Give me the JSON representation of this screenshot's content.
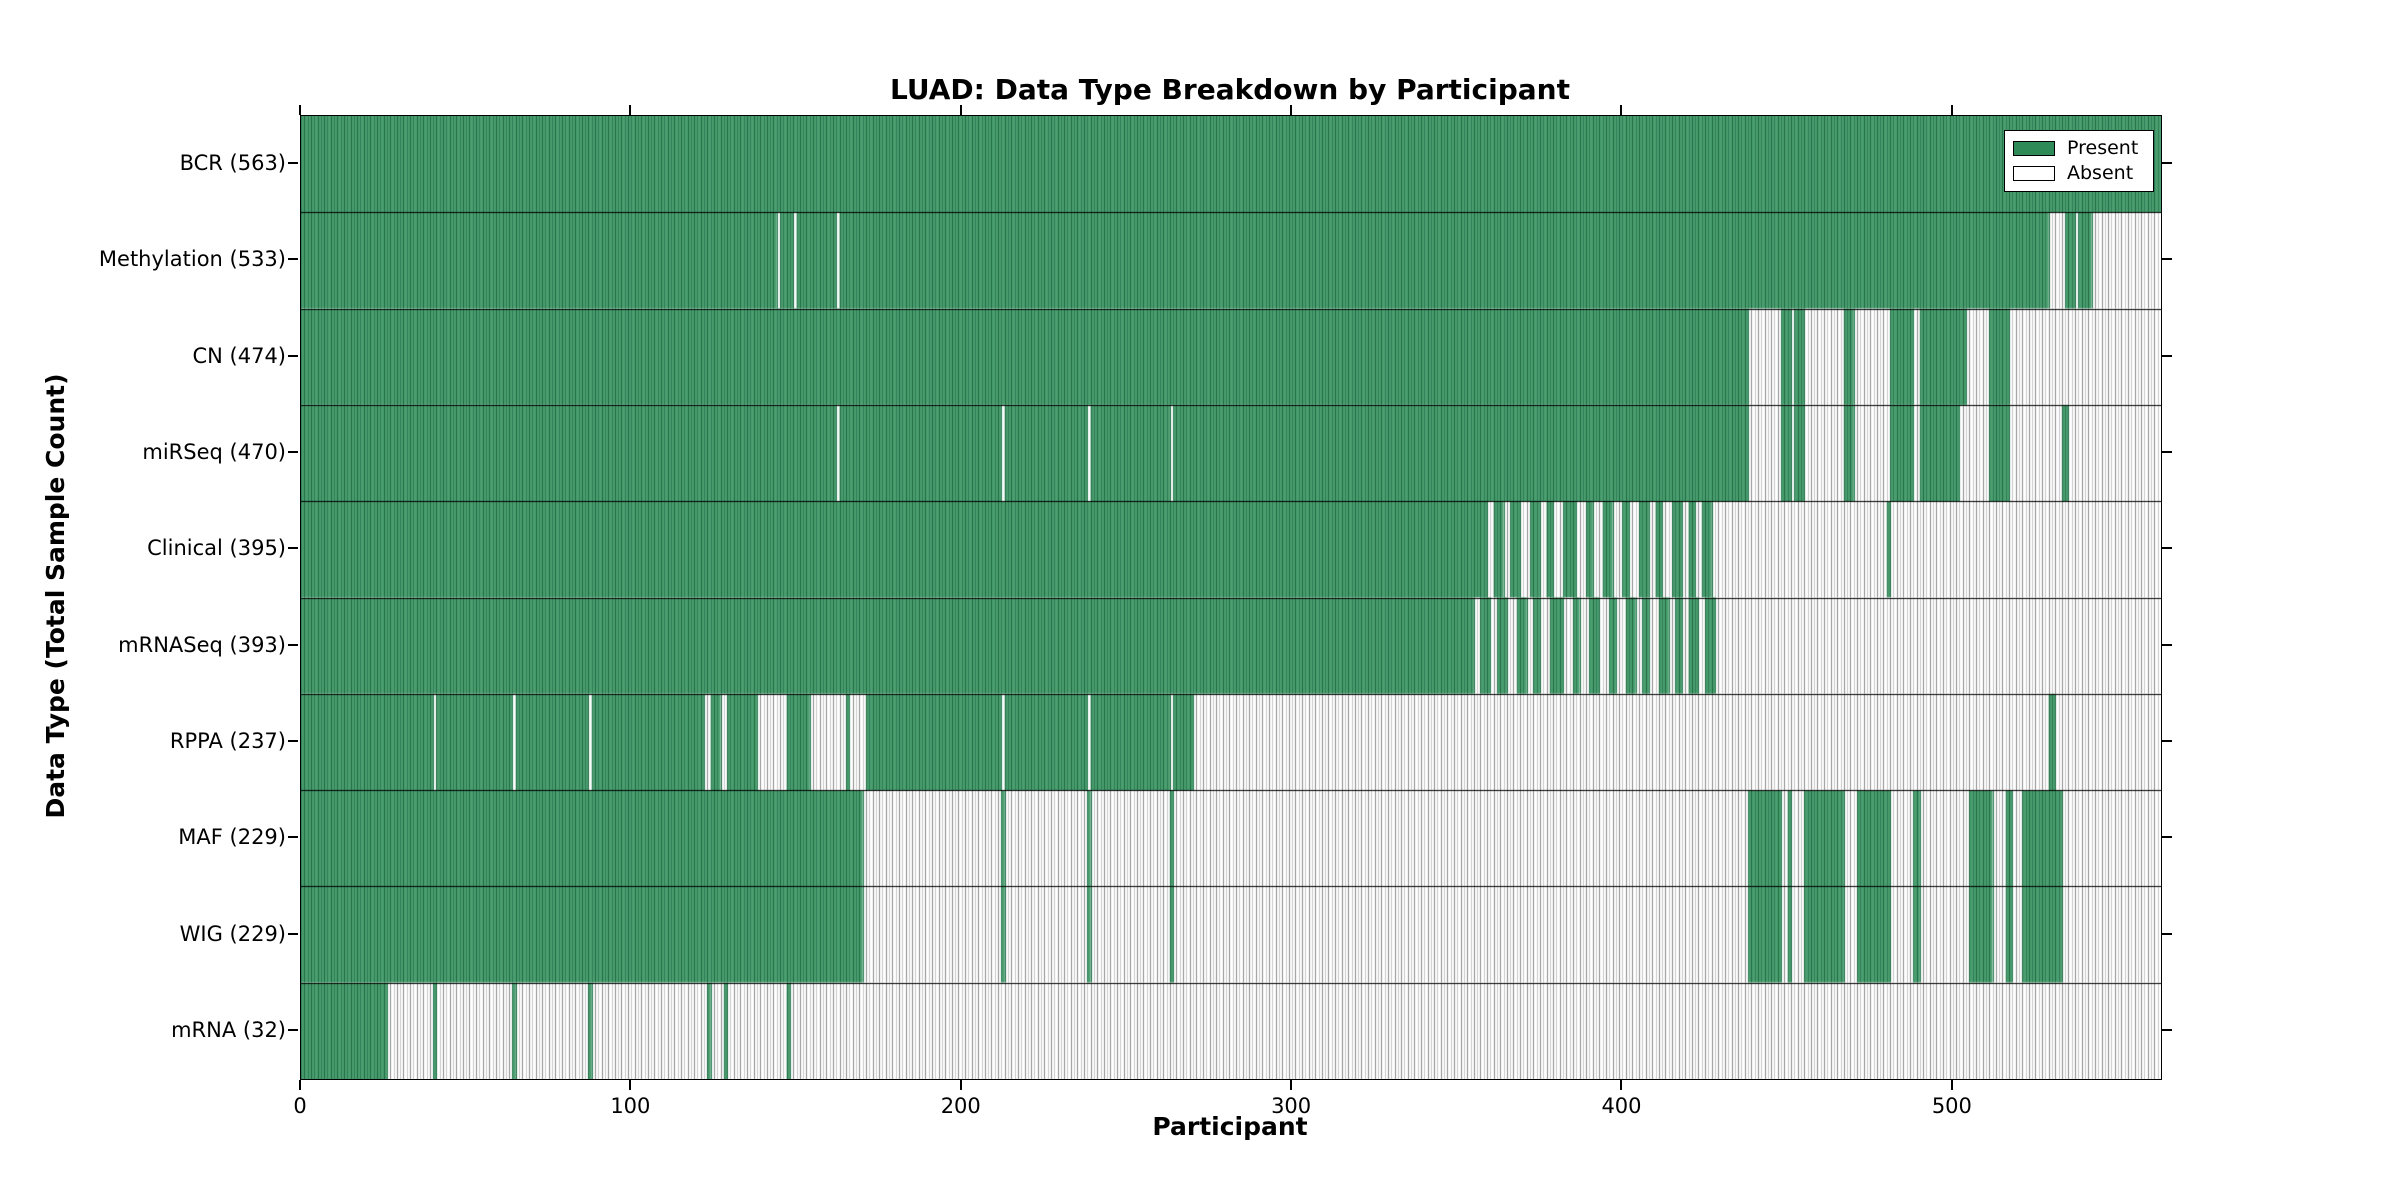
{
  "chart_data": {
    "type": "heatmap",
    "title": "LUAD: Data Type Breakdown by Participant",
    "xlabel": "Participant",
    "ylabel": "Data Type (Total Sample Count)",
    "x_ticks": [
      0,
      100,
      200,
      300,
      400,
      500
    ],
    "n_participants": 563,
    "n_rows": 10,
    "legend": [
      {
        "label": "Present",
        "color": "#2e8b57"
      },
      {
        "label": "Absent",
        "color": "#ffffff"
      }
    ],
    "legend_position": "upper right",
    "grid": "per-cell vertical hatching",
    "colors": {
      "present": "#2e8b57",
      "present_fill": "#4a9e6f",
      "edge_green_dark": "#1e6942",
      "edge_green_mid": "#2d7a53",
      "edge_gray_dark": "#8a8a8a",
      "edge_gray_light": "#c6c6c6",
      "absent": "#ffffff",
      "row_separator": "#000000",
      "axis_border": "#000000"
    },
    "rows": [
      {
        "label": "BCR",
        "count": 563,
        "present_runs": [
          [
            0,
            563
          ]
        ]
      },
      {
        "label": "Methylation",
        "count": 533,
        "present_runs": [
          [
            0,
            144
          ],
          [
            145,
            149
          ],
          [
            150,
            162
          ],
          [
            163,
            529
          ],
          [
            534,
            537
          ],
          [
            538,
            542
          ]
        ]
      },
      {
        "label": "CN",
        "count": 474,
        "present_runs": [
          [
            0,
            438
          ],
          [
            448,
            451
          ],
          [
            452,
            455
          ],
          [
            467,
            470
          ],
          [
            481,
            488
          ],
          [
            490,
            504
          ],
          [
            511,
            517
          ]
        ]
      },
      {
        "label": "miRSeq",
        "count": 470,
        "present_runs": [
          [
            0,
            162
          ],
          [
            163,
            212
          ],
          [
            213,
            238
          ],
          [
            239,
            263
          ],
          [
            264,
            438
          ],
          [
            448,
            451
          ],
          [
            452,
            455
          ],
          [
            467,
            470
          ],
          [
            481,
            488
          ],
          [
            490,
            502
          ],
          [
            511,
            517
          ],
          [
            533,
            535
          ]
        ]
      },
      {
        "label": "Clinical",
        "count": 395,
        "present_runs": [
          [
            0,
            359
          ],
          [
            361,
            364
          ],
          [
            366,
            369
          ],
          [
            372,
            375
          ],
          [
            377,
            379
          ],
          [
            382,
            386
          ],
          [
            389,
            391
          ],
          [
            394,
            397
          ],
          [
            400,
            402
          ],
          [
            405,
            408
          ],
          [
            410,
            412
          ],
          [
            415,
            418
          ],
          [
            420,
            422
          ],
          [
            424,
            427
          ],
          [
            480,
            481
          ]
        ]
      },
      {
        "label": "mRNASeq",
        "count": 393,
        "present_runs": [
          [
            0,
            355
          ],
          [
            357,
            360
          ],
          [
            362,
            365
          ],
          [
            368,
            371
          ],
          [
            373,
            375
          ],
          [
            378,
            382
          ],
          [
            385,
            387
          ],
          [
            390,
            393
          ],
          [
            396,
            398
          ],
          [
            401,
            404
          ],
          [
            406,
            408
          ],
          [
            411,
            414
          ],
          [
            416,
            418
          ],
          [
            420,
            423
          ],
          [
            425,
            428
          ]
        ]
      },
      {
        "label": "RPPA",
        "count": 237,
        "present_runs": [
          [
            0,
            40
          ],
          [
            41,
            64
          ],
          [
            65,
            87
          ],
          [
            88,
            122
          ],
          [
            124,
            127
          ],
          [
            129,
            138
          ],
          [
            147,
            154
          ],
          [
            165,
            166
          ],
          [
            171,
            212
          ],
          [
            213,
            238
          ],
          [
            239,
            263
          ],
          [
            264,
            270
          ],
          [
            529,
            531
          ]
        ]
      },
      {
        "label": "MAF",
        "count": 229,
        "present_runs": [
          [
            0,
            170
          ],
          [
            212,
            213
          ],
          [
            238,
            239
          ],
          [
            263,
            264
          ],
          [
            438,
            448
          ],
          [
            450,
            451
          ],
          [
            455,
            467
          ],
          [
            471,
            481
          ],
          [
            488,
            490
          ],
          [
            505,
            512
          ],
          [
            516,
            518
          ],
          [
            521,
            533
          ]
        ]
      },
      {
        "label": "WIG",
        "count": 229,
        "present_runs": [
          [
            0,
            170
          ],
          [
            212,
            213
          ],
          [
            238,
            239
          ],
          [
            263,
            264
          ],
          [
            438,
            448
          ],
          [
            450,
            451
          ],
          [
            455,
            467
          ],
          [
            471,
            481
          ],
          [
            488,
            490
          ],
          [
            505,
            512
          ],
          [
            516,
            518
          ],
          [
            521,
            533
          ]
        ]
      },
      {
        "label": "mRNA",
        "count": 32,
        "present_runs": [
          [
            0,
            26
          ],
          [
            40,
            41
          ],
          [
            64,
            65
          ],
          [
            87,
            88
          ],
          [
            123,
            124
          ],
          [
            128,
            129
          ],
          [
            147,
            148
          ]
        ]
      }
    ]
  }
}
